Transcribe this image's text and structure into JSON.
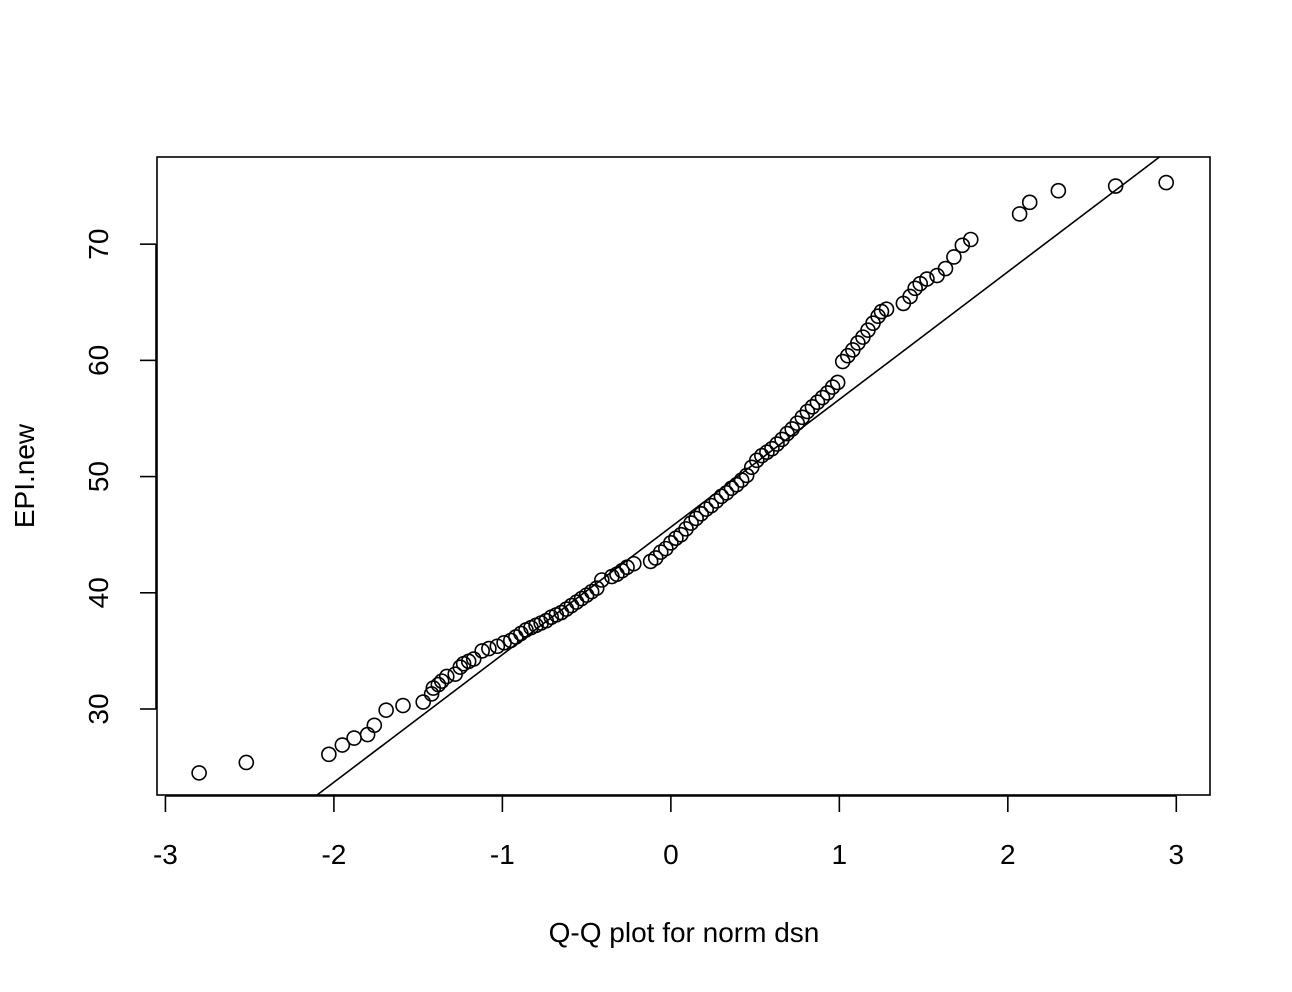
{
  "chart_data": {
    "type": "scatter",
    "title": "",
    "xlabel": "Q-Q plot for norm dsn",
    "ylabel": "EPI.new",
    "xlim": [
      -3.05,
      3.2
    ],
    "ylim": [
      22.6,
      77.5
    ],
    "xticks": [
      -3,
      -2,
      -1,
      0,
      1,
      2,
      3
    ],
    "yticks": [
      30,
      40,
      50,
      60,
      70
    ],
    "reference_line": {
      "x": [
        -2.1,
        2.9
      ],
      "y": [
        22.6,
        77.5
      ]
    },
    "grid": false,
    "points": [
      [
        -2.8,
        24.5
      ],
      [
        -2.52,
        25.4
      ],
      [
        -2.03,
        26.1
      ],
      [
        -1.95,
        26.9
      ],
      [
        -1.88,
        27.5
      ],
      [
        -1.8,
        27.8
      ],
      [
        -1.76,
        28.6
      ],
      [
        -1.69,
        29.9
      ],
      [
        -1.59,
        30.3
      ],
      [
        -1.47,
        30.6
      ],
      [
        -1.42,
        31.3
      ],
      [
        -1.41,
        31.8
      ],
      [
        -1.38,
        32.1
      ],
      [
        -1.36,
        32.4
      ],
      [
        -1.33,
        32.8
      ],
      [
        -1.28,
        33.0
      ],
      [
        -1.25,
        33.6
      ],
      [
        -1.23,
        33.9
      ],
      [
        -1.2,
        34.1
      ],
      [
        -1.17,
        34.3
      ],
      [
        -1.12,
        35.0
      ],
      [
        -1.08,
        35.2
      ],
      [
        -1.03,
        35.4
      ],
      [
        -0.99,
        35.7
      ],
      [
        -0.95,
        35.9
      ],
      [
        -0.92,
        36.2
      ],
      [
        -0.89,
        36.5
      ],
      [
        -0.86,
        36.8
      ],
      [
        -0.83,
        37.0
      ],
      [
        -0.8,
        37.2
      ],
      [
        -0.77,
        37.4
      ],
      [
        -0.74,
        37.6
      ],
      [
        -0.71,
        37.9
      ],
      [
        -0.68,
        38.1
      ],
      [
        -0.65,
        38.3
      ],
      [
        -0.62,
        38.6
      ],
      [
        -0.59,
        38.9
      ],
      [
        -0.56,
        39.2
      ],
      [
        -0.53,
        39.5
      ],
      [
        -0.5,
        39.8
      ],
      [
        -0.47,
        40.1
      ],
      [
        -0.44,
        40.4
      ],
      [
        -0.41,
        41.1
      ],
      [
        -0.35,
        41.4
      ],
      [
        -0.32,
        41.6
      ],
      [
        -0.29,
        41.9
      ],
      [
        -0.26,
        42.2
      ],
      [
        -0.22,
        42.5
      ],
      [
        -0.12,
        42.7
      ],
      [
        -0.09,
        43.0
      ],
      [
        -0.06,
        43.5
      ],
      [
        -0.03,
        43.8
      ],
      [
        0.0,
        44.3
      ],
      [
        0.03,
        44.7
      ],
      [
        0.06,
        45.0
      ],
      [
        0.09,
        45.5
      ],
      [
        0.12,
        46.0
      ],
      [
        0.15,
        46.4
      ],
      [
        0.18,
        46.8
      ],
      [
        0.21,
        47.2
      ],
      [
        0.24,
        47.5
      ],
      [
        0.27,
        47.9
      ],
      [
        0.3,
        48.3
      ],
      [
        0.33,
        48.6
      ],
      [
        0.36,
        49.0
      ],
      [
        0.39,
        49.3
      ],
      [
        0.42,
        49.7
      ],
      [
        0.45,
        50.1
      ],
      [
        0.48,
        50.8
      ],
      [
        0.51,
        51.4
      ],
      [
        0.54,
        51.8
      ],
      [
        0.57,
        52.1
      ],
      [
        0.6,
        52.4
      ],
      [
        0.63,
        52.8
      ],
      [
        0.66,
        53.2
      ],
      [
        0.69,
        53.7
      ],
      [
        0.72,
        54.1
      ],
      [
        0.75,
        54.6
      ],
      [
        0.78,
        55.1
      ],
      [
        0.81,
        55.6
      ],
      [
        0.84,
        56.0
      ],
      [
        0.87,
        56.4
      ],
      [
        0.9,
        56.8
      ],
      [
        0.93,
        57.2
      ],
      [
        0.96,
        57.7
      ],
      [
        0.99,
        58.1
      ],
      [
        1.02,
        59.9
      ],
      [
        1.05,
        60.4
      ],
      [
        1.08,
        60.9
      ],
      [
        1.11,
        61.5
      ],
      [
        1.14,
        62.0
      ],
      [
        1.17,
        62.6
      ],
      [
        1.2,
        63.2
      ],
      [
        1.23,
        63.8
      ],
      [
        1.25,
        64.2
      ],
      [
        1.28,
        64.4
      ],
      [
        1.38,
        64.9
      ],
      [
        1.42,
        65.5
      ],
      [
        1.45,
        66.2
      ],
      [
        1.48,
        66.6
      ],
      [
        1.52,
        67.0
      ],
      [
        1.58,
        67.3
      ],
      [
        1.63,
        67.9
      ],
      [
        1.68,
        68.9
      ],
      [
        1.73,
        69.9
      ],
      [
        1.78,
        70.4
      ],
      [
        2.07,
        72.6
      ],
      [
        2.13,
        73.6
      ],
      [
        2.3,
        74.6
      ],
      [
        2.64,
        75.0
      ],
      [
        2.94,
        75.3
      ]
    ]
  }
}
